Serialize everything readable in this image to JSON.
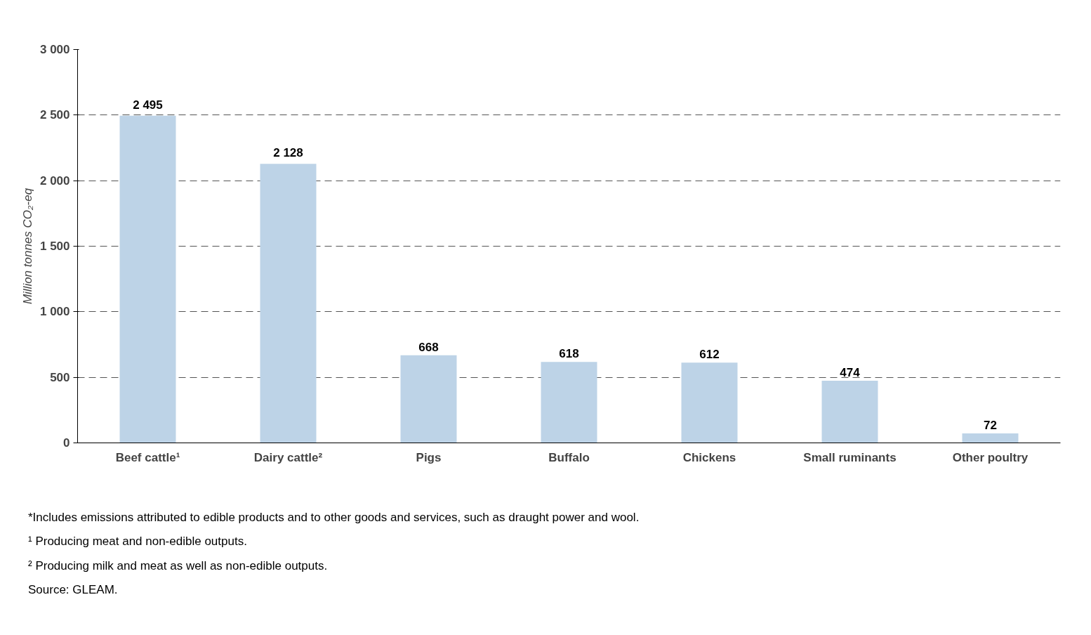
{
  "chart_data": {
    "type": "bar",
    "ylabel": "Million tonnes CO₂-eq",
    "categories": [
      "Beef cattle¹",
      "Dairy cattle²",
      "Pigs",
      "Buffalo",
      "Chickens",
      "Small ruminants",
      "Other poultry"
    ],
    "values": [
      2495,
      2128,
      668,
      618,
      612,
      474,
      72
    ],
    "value_labels": [
      "2 495",
      "2 128",
      "668",
      "618",
      "612",
      "474",
      "72"
    ],
    "color": "#bdd3e7",
    "ylim": [
      0,
      3000
    ],
    "yticks": [
      {
        "value": 0,
        "label": "0"
      },
      {
        "value": 500,
        "label": "500"
      },
      {
        "value": 1000,
        "label": "1 000"
      },
      {
        "value": 1500,
        "label": "1 500"
      },
      {
        "value": 2000,
        "label": "2 000"
      },
      {
        "value": 2500,
        "label": "2 500"
      },
      {
        "value": 3000,
        "label": "3 000"
      }
    ],
    "grid": "y",
    "line_style": "dashed",
    "annotations": [
      "*Includes emissions attributed to edible products and to other goods and services, such as draught power and wool.",
      "¹ Producing meat and non-edible outputs.",
      "² Producing milk and meat as well as non-edible outputs.",
      "Source: GLEAM."
    ]
  }
}
